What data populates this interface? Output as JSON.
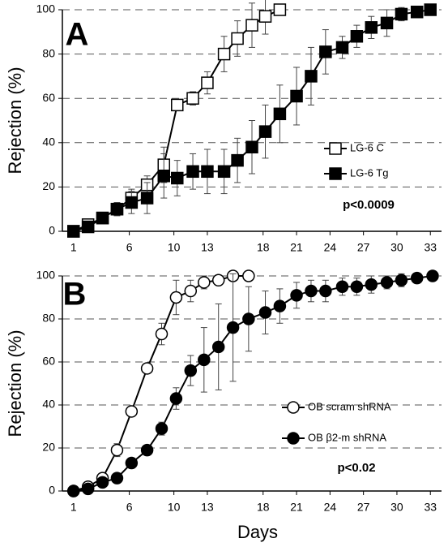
{
  "chart_data": [
    {
      "type": "line",
      "title": "A",
      "ylabel": "Rejection (%)",
      "annotation": "p<0.0009",
      "xlim": [
        0,
        34
      ],
      "xticks": [
        1,
        6,
        10,
        13,
        18,
        21,
        24,
        27,
        30,
        33
      ],
      "ylim": [
        0,
        100
      ],
      "yticks": [
        0,
        20,
        40,
        60,
        80,
        100
      ],
      "grid": true,
      "grid_style": "dashed",
      "legend": "right",
      "series": [
        {
          "name": "LG-6 C",
          "color": "#000000",
          "marker": "square",
          "marker_fill": "#ffffff",
          "x": [
            1,
            2.3,
            3.6,
            4.9,
            6.2,
            7.6,
            9.1,
            10.3,
            11.7,
            13.0,
            14.5,
            15.7,
            17.0,
            18.2,
            19.5
          ],
          "values": [
            0,
            3,
            6,
            10,
            15,
            21,
            30,
            57,
            60,
            67,
            80,
            87,
            93,
            97,
            100
          ],
          "errors": [
            null,
            null,
            null,
            null,
            4,
            4,
            8,
            null,
            3,
            5,
            8,
            8,
            10,
            8,
            null
          ]
        },
        {
          "name": "LG-6 Tg",
          "color": "#000000",
          "marker": "square",
          "marker_fill": "#000000",
          "x": [
            1,
            2.3,
            3.6,
            4.9,
            6.2,
            7.6,
            9.1,
            10.3,
            11.7,
            13.0,
            14.5,
            15.7,
            17.0,
            18.2,
            19.5,
            21.0,
            22.3,
            23.6,
            25.1,
            26.4,
            27.7,
            29.1,
            30.4,
            31.8,
            33.0
          ],
          "values": [
            0,
            2,
            6,
            10,
            13,
            15,
            25,
            24,
            27,
            27,
            27,
            32,
            38,
            45,
            53,
            61,
            70,
            81,
            83,
            88,
            92,
            94,
            98,
            99,
            100
          ],
          "errors": [
            null,
            null,
            null,
            3,
            5,
            7,
            10,
            8,
            8,
            10,
            10,
            10,
            12,
            12,
            13,
            13,
            13,
            10,
            5,
            5,
            5,
            6,
            3,
            null,
            null
          ]
        }
      ]
    },
    {
      "type": "line",
      "title": "B",
      "ylabel": "Rejection (%)",
      "xlabel": "Days",
      "annotation": "p<0.02",
      "xlim": [
        0,
        34
      ],
      "xticks": [
        1,
        6,
        10,
        13,
        18,
        21,
        24,
        27,
        30,
        33
      ],
      "ylim": [
        0,
        100
      ],
      "yticks": [
        0,
        20,
        40,
        60,
        80,
        100
      ],
      "grid": true,
      "grid_style": "dashed",
      "legend": "right",
      "series": [
        {
          "name": "OB scram shRNA",
          "color": "#000000",
          "marker": "circle",
          "marker_fill": "#ffffff",
          "x": [
            1,
            2.3,
            3.6,
            4.9,
            6.2,
            7.6,
            8.9,
            10.2,
            11.5,
            12.7,
            14.0,
            15.3,
            16.7
          ],
          "values": [
            0,
            2,
            6,
            19,
            37,
            57,
            73,
            90,
            93,
            97,
            98,
            100,
            100
          ],
          "errors": [
            null,
            null,
            null,
            3,
            null,
            null,
            5,
            8,
            5,
            3,
            2,
            null,
            null
          ]
        },
        {
          "name": "OB β2-m shRNA",
          "color": "#000000",
          "marker": "circle",
          "marker_fill": "#000000",
          "x": [
            1,
            2.3,
            3.6,
            4.9,
            6.2,
            7.6,
            8.9,
            10.2,
            11.5,
            12.7,
            14.0,
            15.3,
            16.7,
            18.2,
            19.5,
            21.0,
            22.3,
            23.6,
            25.1,
            26.4,
            27.7,
            29.1,
            30.4,
            31.8,
            33.2
          ],
          "values": [
            0,
            1,
            4,
            6,
            13,
            19,
            29,
            43,
            56,
            61,
            67,
            76,
            80,
            83,
            86,
            91,
            93,
            93,
            95,
            95,
            96,
            97,
            98,
            99,
            100
          ],
          "errors": [
            null,
            null,
            null,
            null,
            null,
            null,
            3,
            5,
            7,
            15,
            20,
            25,
            15,
            10,
            8,
            6,
            5,
            5,
            4,
            4,
            4,
            3,
            3,
            2,
            null
          ]
        }
      ]
    }
  ]
}
